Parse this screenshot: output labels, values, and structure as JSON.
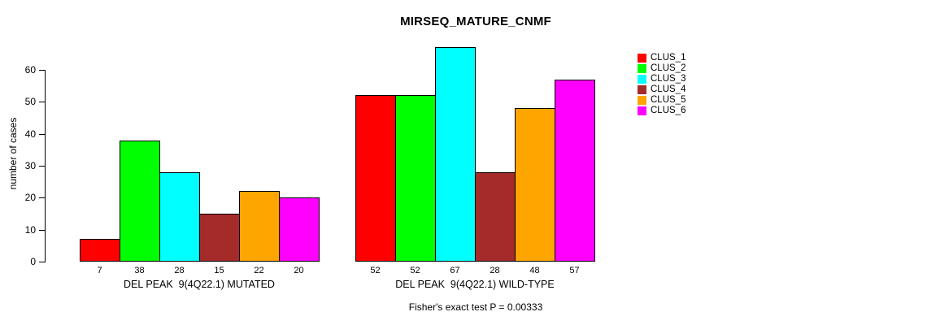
{
  "title": "MIRSEQ_MATURE_CNMF",
  "chart_data": {
    "type": "bar",
    "title": "MIRSEQ_MATURE_CNMF",
    "ylabel": "number of cases",
    "xlabel": "",
    "yticks": [
      0,
      10,
      20,
      30,
      40,
      50,
      60
    ],
    "ylim": [
      0,
      67
    ],
    "grid": false,
    "legend_position": "right-outside",
    "categories": [
      "DEL PEAK  9(4Q22.1) MUTATED",
      "DEL PEAK  9(4Q22.1) WILD-TYPE"
    ],
    "series": [
      {
        "name": "CLUS_1",
        "color": "#FF0000",
        "values": [
          7,
          52
        ]
      },
      {
        "name": "CLUS_2",
        "color": "#00FF00",
        "values": [
          38,
          52
        ]
      },
      {
        "name": "CLUS_3",
        "color": "#00FFFF",
        "values": [
          28,
          67
        ]
      },
      {
        "name": "CLUS_4",
        "color": "#A52A2A",
        "values": [
          15,
          28
        ]
      },
      {
        "name": "CLUS_5",
        "color": "#FFA500",
        "values": [
          22,
          48
        ]
      },
      {
        "name": "CLUS_6",
        "color": "#FF00FF",
        "values": [
          20,
          57
        ]
      }
    ],
    "bar_value_labels": [
      [
        7,
        38,
        28,
        15,
        22,
        20
      ],
      [
        52,
        52,
        67,
        28,
        48,
        57
      ]
    ],
    "annotation": "Fisher's exact test P = 0.00333",
    "axis_color": "#000000",
    "bar_border_color": "#000000"
  }
}
